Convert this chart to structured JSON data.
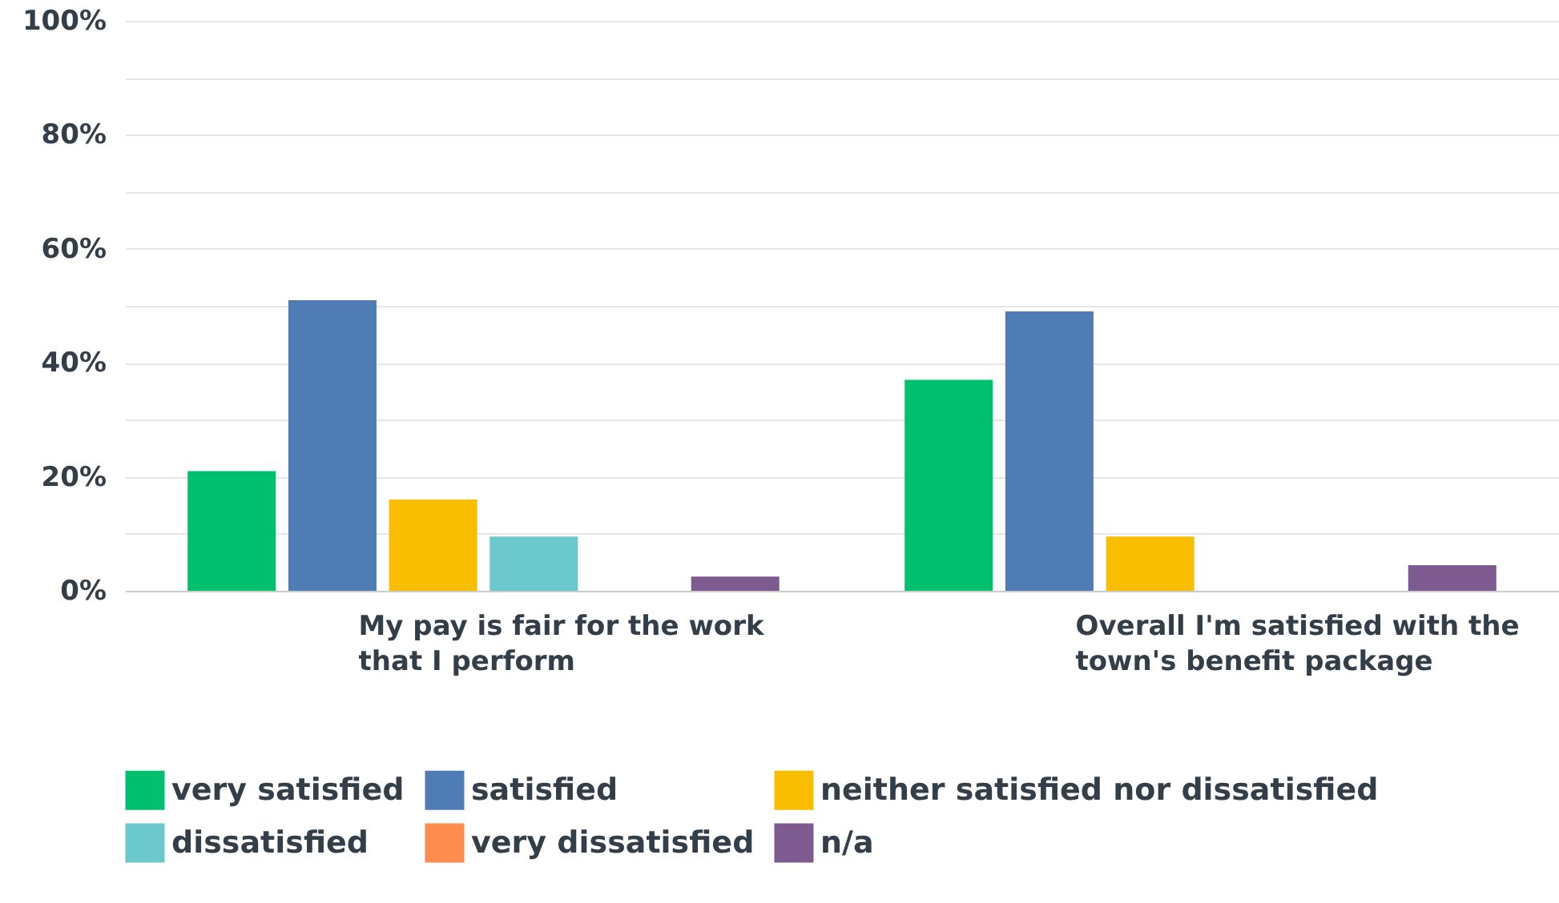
{
  "chart_data": {
    "type": "bar",
    "categories": [
      "My pay is fair for the work that I perform",
      "Overall I'm satisfied with the town's benefit package"
    ],
    "series": [
      {
        "name": "very satisfied",
        "color": "#00bf6f",
        "values": [
          21,
          37
        ]
      },
      {
        "name": "satisfied",
        "color": "#507cb6",
        "values": [
          51,
          49
        ]
      },
      {
        "name": "neither satisfied nor dissatisfied",
        "color": "#f9be00",
        "values": [
          16,
          9.5
        ]
      },
      {
        "name": "dissatisfied",
        "color": "#6bc8cd",
        "values": [
          9.5,
          0
        ]
      },
      {
        "name": "very dissatisfied",
        "color": "#ff8b4f",
        "values": [
          0,
          0
        ]
      },
      {
        "name": "n/a",
        "color": "#7d5b91",
        "values": [
          2.5,
          4.5
        ]
      }
    ],
    "ylim": [
      0,
      100
    ],
    "yticks": [
      {
        "value": 0,
        "label": "0%"
      },
      {
        "value": 10,
        "label": null
      },
      {
        "value": 20,
        "label": "20%"
      },
      {
        "value": 30,
        "label": null
      },
      {
        "value": 40,
        "label": "40%"
      },
      {
        "value": 50,
        "label": null
      },
      {
        "value": 60,
        "label": "60%"
      },
      {
        "value": 70,
        "label": null
      },
      {
        "value": 80,
        "label": "80%"
      },
      {
        "value": 90,
        "label": null
      },
      {
        "value": 100,
        "label": "100%"
      }
    ],
    "grid": true,
    "legend": "bottom"
  }
}
